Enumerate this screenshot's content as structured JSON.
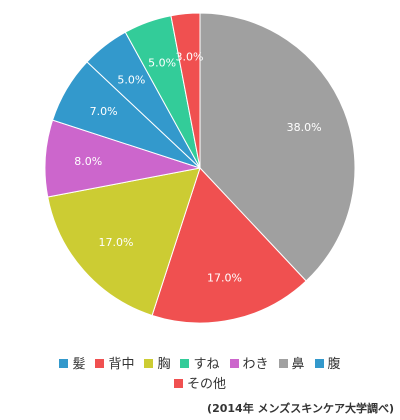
{
  "chart_data": {
    "type": "pie",
    "title": "",
    "slices": [
      {
        "label": "鼻",
        "value": 38.0,
        "display": "38.0%",
        "color": "#a0a0a0"
      },
      {
        "label": "背中",
        "value": 17.0,
        "display": "17.0%",
        "color": "#f05050"
      },
      {
        "label": "胸",
        "value": 17.0,
        "display": "17.0%",
        "color": "#cccc33"
      },
      {
        "label": "わき",
        "value": 8.0,
        "display": "8.0%",
        "color": "#cc66cc"
      },
      {
        "label": "腹",
        "value": 7.0,
        "display": "7.0%",
        "color": "#3399cc"
      },
      {
        "label": "髪",
        "value": 5.0,
        "display": "5.0%",
        "color": "#3399cc"
      },
      {
        "label": "すね",
        "value": 5.0,
        "display": "5.0%",
        "color": "#33cc99"
      },
      {
        "label": "その他",
        "value": 3.0,
        "display": "3.0%",
        "color": "#f05050"
      }
    ],
    "legend": [
      {
        "label": "髪",
        "color": "#3399cc"
      },
      {
        "label": "背中",
        "color": "#f05050"
      },
      {
        "label": "胸",
        "color": "#cccc33"
      },
      {
        "label": "すね",
        "color": "#33cc99"
      },
      {
        "label": "わき",
        "color": "#cc66cc"
      },
      {
        "label": "鼻",
        "color": "#a0a0a0"
      },
      {
        "label": "腹",
        "color": "#3399cc"
      },
      {
        "label": "その他",
        "color": "#f05050"
      }
    ],
    "legend_position": "bottom",
    "start": "top, clockwise"
  },
  "source_note": "(2014年 メンズスキンケア大学調べ)"
}
